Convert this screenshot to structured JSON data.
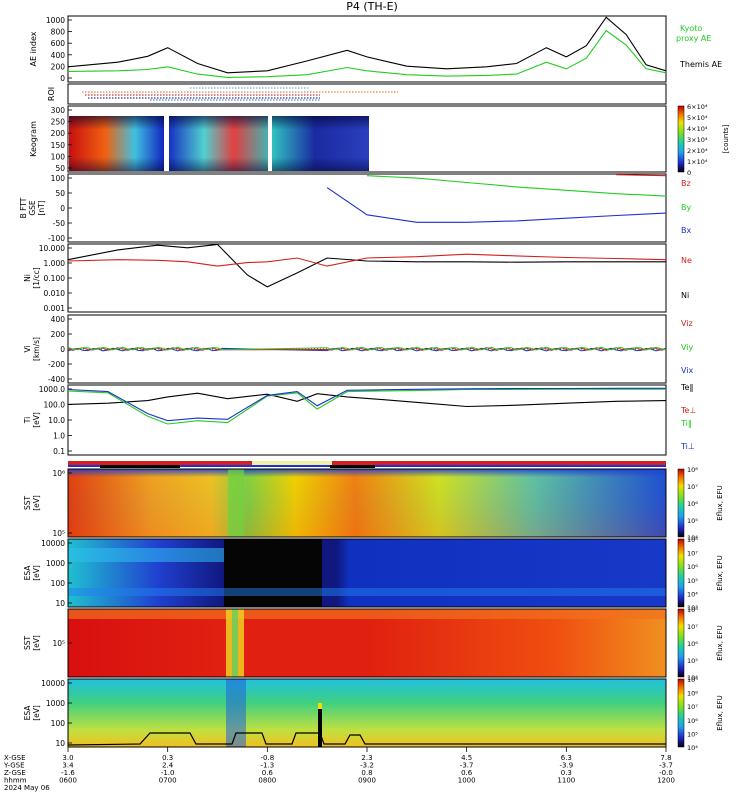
{
  "title": "P4 (TH-E)",
  "colors": {
    "black": "#000000",
    "green": "#22cc22",
    "red": "#d42020",
    "blue": "#1f2fd0",
    "orange": "#e06010"
  },
  "panels": {
    "ae": {
      "ylabel": "AE index",
      "ticks": [
        "0",
        "200",
        "400",
        "600",
        "800",
        "1000"
      ],
      "legend": [
        "Kyoto",
        "proxy AE",
        "Themis AE"
      ]
    },
    "roi": {
      "ylabel": "ROI"
    },
    "keogram": {
      "ylabel": "Keogram",
      "ticks": [
        "50",
        "100",
        "150",
        "200",
        "250",
        "300"
      ],
      "cbar_ticks": [
        "0",
        "1×10⁴",
        "2×10⁴",
        "3×10⁴",
        "4×10⁴",
        "5×10⁴",
        "6×10⁴"
      ],
      "cbar_label": "[counts]"
    },
    "bfield": {
      "ylabel": [
        "B FTT",
        "GSE",
        "[nT]"
      ],
      "ticks": [
        "-100",
        "-50",
        "0",
        "50",
        "100"
      ],
      "legend": [
        "Bz",
        "By",
        "Bx"
      ]
    },
    "density": {
      "ylabel": [
        "Ni",
        "[1/cc]"
      ],
      "ticks": [
        "0.001",
        "0.010",
        "0.100",
        "1.000",
        "10.000"
      ],
      "legend": [
        "Ne",
        "Ni"
      ]
    },
    "velocity": {
      "ylabel": [
        "Vi",
        "[km/s]"
      ],
      "ticks": [
        "-400",
        "-200",
        "0",
        "200",
        "400"
      ],
      "legend": [
        "Viz",
        "Viy",
        "Vix"
      ]
    },
    "temperature": {
      "ylabel": [
        "Ti",
        "[eV]"
      ],
      "ticks": [
        "0.1",
        "1.0",
        "10.0",
        "100.0",
        "1000.0"
      ],
      "legend": [
        "Te‖",
        "Te⊥",
        "Ti‖",
        "Ti⊥"
      ]
    },
    "sst_ion": {
      "ylabel": [
        "SST",
        "[eV]"
      ],
      "ticks": [
        "10⁵",
        "10⁶"
      ],
      "cbar_ticks": [
        "10⁴",
        "10⁵",
        "10⁶",
        "10⁷",
        "10⁸"
      ],
      "cbar_label": "Eflux, EFU"
    },
    "esa_ion": {
      "ylabel": [
        "ESA",
        "[eV]"
      ],
      "ticks": [
        "10",
        "100",
        "1000",
        "10000"
      ],
      "cbar_ticks": [
        "10³",
        "10⁴",
        "10⁵",
        "10⁶",
        "10⁷",
        "10⁸"
      ],
      "cbar_label": "Eflux, EFU"
    },
    "sst_elec": {
      "ylabel": [
        "SST",
        "[eV]"
      ],
      "ticks": [
        "10⁵"
      ],
      "cbar_ticks": [
        "10⁴",
        "10⁵",
        "10⁶",
        "10⁷",
        "10⁸"
      ],
      "cbar_label": "Eflux, EFU"
    },
    "esa_elec": {
      "ylabel": [
        "ESA",
        "[eV]"
      ],
      "ticks": [
        "10",
        "100",
        "1000",
        "10000"
      ],
      "cbar_ticks": [
        "10⁴",
        "10⁵",
        "10⁶",
        "10⁷",
        "10⁸",
        "10⁹"
      ],
      "cbar_label": "Eflux, EFU"
    }
  },
  "footer": {
    "row_labels": [
      "X-GSE",
      "Y-GSE",
      "Z-GSE",
      "hhmm",
      "2024 May 06"
    ],
    "columns": [
      {
        "x": "3.0",
        "y": "3.4",
        "z": "-1.6",
        "hhmm": "0600"
      },
      {
        "x": "0.3",
        "y": "2.4",
        "z": "-1.0",
        "hhmm": "0700"
      },
      {
        "x": "-0.8",
        "y": "-1.3",
        "z": "0.6",
        "hhmm": "0800"
      },
      {
        "x": "2.3",
        "y": "-3.2",
        "z": "0.8",
        "hhmm": "0900"
      },
      {
        "x": "4.5",
        "y": "-3.7",
        "z": "0.6",
        "hhmm": "1000"
      },
      {
        "x": "6.3",
        "y": "-3.9",
        "z": "0.3",
        "hhmm": "1100"
      },
      {
        "x": "7.8",
        "y": "-3.7",
        "z": "-0.0",
        "hhmm": "1200"
      }
    ]
  },
  "chart_data": [
    {
      "type": "line",
      "title": "P4 (TH-E)",
      "ylabel": "AE index",
      "x_unit": "hours UT",
      "xlim": [
        6,
        12
      ],
      "ylim": [
        0,
        1000
      ],
      "x": [
        6.0,
        6.5,
        6.8,
        7.0,
        7.3,
        7.6,
        8.0,
        8.4,
        8.8,
        9.0,
        9.4,
        9.8,
        10.2,
        10.5,
        10.8,
        11.0,
        11.2,
        11.4,
        11.6,
        11.8,
        12.0
      ],
      "series": [
        {
          "name": "Themis AE",
          "values": [
            230,
            300,
            390,
            520,
            280,
            140,
            170,
            320,
            480,
            380,
            240,
            200,
            230,
            280,
            520,
            380,
            550,
            980,
            720,
            260,
            170
          ]
        },
        {
          "name": "Kyoto proxy AE",
          "values": [
            160,
            170,
            190,
            230,
            120,
            70,
            80,
            110,
            220,
            170,
            110,
            90,
            100,
            120,
            300,
            200,
            360,
            780,
            560,
            200,
            140
          ]
        }
      ]
    },
    {
      "type": "line",
      "ylabel": "B FTT GSE [nT]",
      "xlim": [
        6,
        12
      ],
      "ylim": [
        -100,
        100
      ],
      "x": [
        6.0,
        6.5,
        6.95,
        7.2,
        7.6,
        8.0,
        8.6,
        9.0,
        9.5,
        10.0,
        10.5,
        11.0,
        11.5,
        12.0
      ],
      "series": [
        {
          "name": "Bz",
          "values": [
            null,
            null,
            null,
            null,
            null,
            null,
            null,
            null,
            null,
            null,
            null,
            null,
            98,
            95
          ]
        },
        {
          "name": "By",
          "values": [
            null,
            null,
            null,
            null,
            null,
            null,
            null,
            95,
            88,
            75,
            62,
            52,
            42,
            35
          ]
        },
        {
          "name": "Bx",
          "values": [
            null,
            null,
            null,
            null,
            null,
            null,
            60,
            -20,
            -42,
            -42,
            -38,
            -30,
            -22,
            -15
          ]
        }
      ]
    },
    {
      "type": "line",
      "ylabel": "Ni [1/cc]",
      "xlim": [
        6,
        12
      ],
      "ylim": [
        0.001,
        10
      ],
      "log_y": true,
      "x": [
        6.0,
        6.5,
        6.9,
        7.2,
        7.5,
        7.8,
        8.0,
        8.3,
        8.6,
        9.0,
        9.5,
        10.0,
        10.5,
        11.0,
        11.5,
        12.0
      ],
      "series": [
        {
          "name": "Ni",
          "values": [
            1.2,
            4.5,
            8.5,
            6.0,
            9.5,
            0.15,
            0.03,
            0.2,
            1.5,
            1.0,
            0.9,
            0.9,
            0.85,
            0.9,
            0.9,
            0.9
          ]
        },
        {
          "name": "Ne",
          "values": [
            1.0,
            1.2,
            1.1,
            0.9,
            0.5,
            0.8,
            0.9,
            1.5,
            0.5,
            1.5,
            1.8,
            2.5,
            2.0,
            1.6,
            1.4,
            1.2
          ]
        }
      ]
    },
    {
      "type": "line",
      "ylabel": "Ti [eV]",
      "xlim": [
        6,
        12
      ],
      "ylim": [
        0.1,
        5000
      ],
      "log_y": true,
      "x": [
        6.0,
        6.4,
        6.8,
        7.0,
        7.3,
        7.6,
        8.0,
        8.3,
        8.5,
        8.8,
        9.2,
        9.6,
        10.0,
        10.5,
        11.0,
        11.5,
        12.0
      ],
      "series": [
        {
          "name": "Te‖",
          "values": [
            250,
            300,
            450,
            800,
            1400,
            600,
            1200,
            400,
            1300,
            800,
            500,
            300,
            180,
            220,
            300,
            400,
            450
          ]
        },
        {
          "name": "Ti‖",
          "values": [
            2000,
            1500,
            40,
            12,
            20,
            15,
            900,
            1500,
            120,
            1800,
            2000,
            2200,
            2500,
            2500,
            2600,
            2600,
            2600
          ]
        },
        {
          "name": "Ti⊥",
          "values": [
            2500,
            1800,
            60,
            20,
            30,
            25,
            1000,
            1800,
            200,
            2200,
            2400,
            2600,
            2800,
            2900,
            2900,
            3000,
            3000
          ]
        }
      ]
    }
  ]
}
